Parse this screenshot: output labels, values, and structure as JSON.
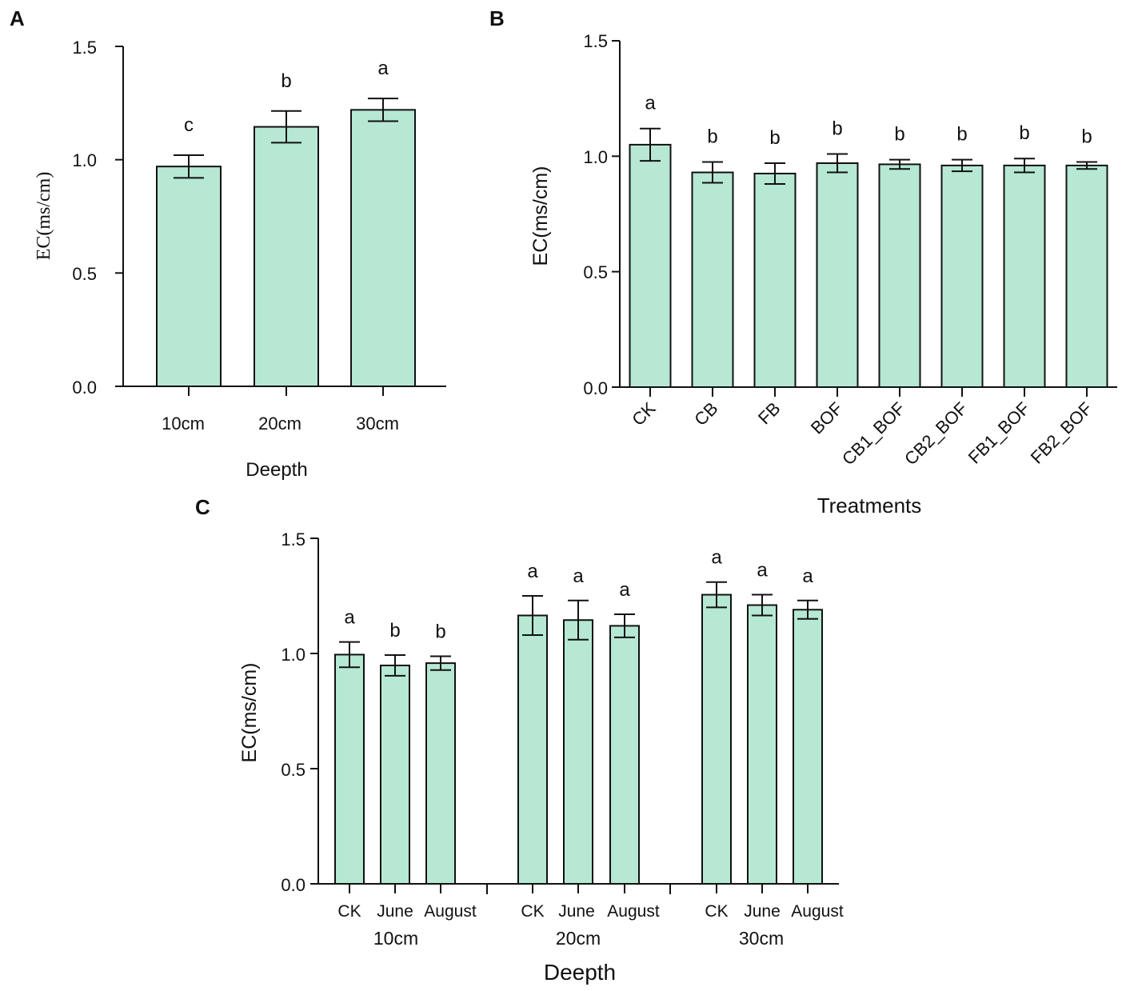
{
  "chart_data": [
    {
      "panel": "A",
      "type": "bar",
      "categories": [
        "10cm",
        "20cm",
        "30cm"
      ],
      "values": [
        0.97,
        1.145,
        1.22
      ],
      "errors": [
        0.05,
        0.07,
        0.05
      ],
      "letters": [
        "c",
        "b",
        "a"
      ],
      "xlabel": "Deepth",
      "ylabel": "EC(ms/cm)",
      "ylim": [
        0,
        1.5
      ],
      "yticks": [
        "0.0",
        "0.5",
        "1.0",
        "1.5"
      ]
    },
    {
      "panel": "B",
      "type": "bar",
      "categories": [
        "CK",
        "CB",
        "FB",
        "BOF",
        "CB1_BOF",
        "CB2_BOF",
        "FB1_BOF",
        "FB2_BOF"
      ],
      "values": [
        1.05,
        0.93,
        0.925,
        0.97,
        0.965,
        0.96,
        0.96,
        0.96
      ],
      "errors": [
        0.07,
        0.045,
        0.045,
        0.04,
        0.02,
        0.025,
        0.03,
        0.015
      ],
      "letters": [
        "a",
        "b",
        "b",
        "b",
        "b",
        "b",
        "b",
        "b"
      ],
      "xlabel": "Treatments",
      "ylabel": "EC(ms/cm)",
      "ylim": [
        0,
        1.5
      ],
      "yticks": [
        "0.0",
        "0.5",
        "1.0",
        "1.5"
      ]
    },
    {
      "panel": "C",
      "type": "bar",
      "groups": [
        {
          "name": "10cm",
          "categories": [
            "CK",
            "June",
            "August"
          ],
          "values": [
            0.995,
            0.948,
            0.958
          ],
          "errors": [
            0.055,
            0.045,
            0.03
          ],
          "letters": [
            "a",
            "b",
            "b"
          ]
        },
        {
          "name": "20cm",
          "categories": [
            "CK",
            "June",
            "August"
          ],
          "values": [
            1.165,
            1.145,
            1.12
          ],
          "errors": [
            0.085,
            0.085,
            0.05
          ],
          "letters": [
            "a",
            "a",
            "a"
          ]
        },
        {
          "name": "30cm",
          "categories": [
            "CK",
            "June",
            "August"
          ],
          "values": [
            1.255,
            1.21,
            1.19
          ],
          "errors": [
            0.055,
            0.045,
            0.04
          ],
          "letters": [
            "a",
            "a",
            "a"
          ]
        }
      ],
      "xlabel": "Deepth",
      "ylabel": "EC(ms/cm)",
      "ylim": [
        0,
        1.5
      ],
      "yticks": [
        "0.0",
        "0.5",
        "1.0",
        "1.5"
      ]
    }
  ]
}
